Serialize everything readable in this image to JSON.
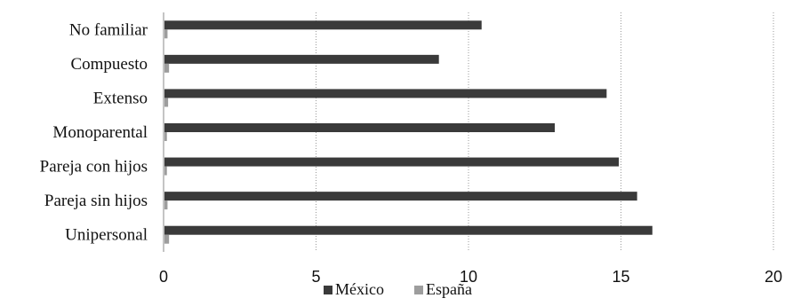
{
  "chart_data": {
    "type": "bar",
    "orientation": "horizontal",
    "categories": [
      "No familiar",
      "Compuesto",
      "Extenso",
      "Monoparental",
      "Pareja con hijos",
      "Pareja sin hijos",
      "Unipersonal"
    ],
    "series": [
      {
        "name": "México",
        "values": [
          10.4,
          9.0,
          14.5,
          12.8,
          14.9,
          15.5,
          16.0
        ]
      },
      {
        "name": "España",
        "values": [
          0.1,
          0.15,
          0.12,
          0.08,
          0.08,
          0.1,
          0.15
        ]
      }
    ],
    "xlim": [
      0,
      20
    ],
    "xticks": [
      "0",
      "5",
      "10",
      "15",
      "20"
    ],
    "grid": "vertical",
    "legend_position": "bottom",
    "colors": {
      "México": "#3a3a3a",
      "España": "#9d9d9d"
    }
  }
}
